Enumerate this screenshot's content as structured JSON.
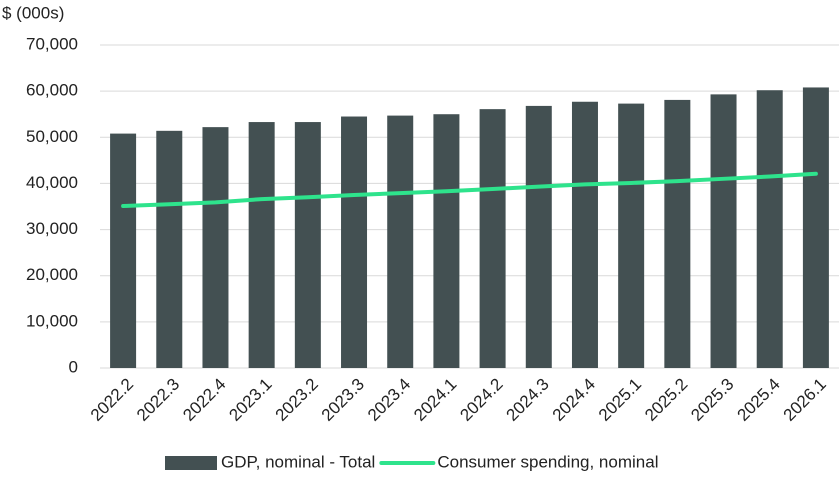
{
  "chart_data": {
    "type": "combo",
    "y_axis_label": "$ (000s)",
    "categories": [
      "2022.2",
      "2022.3",
      "2022.4",
      "2023.1",
      "2023.2",
      "2023.3",
      "2023.4",
      "2024.1",
      "2024.2",
      "2024.3",
      "2024.4",
      "2025.1",
      "2025.2",
      "2025.3",
      "2025.4",
      "2026.1"
    ],
    "series": [
      {
        "name": "GDP, nominal - Total",
        "type": "bar",
        "color": "#435052",
        "values": [
          50800,
          51400,
          52200,
          53300,
          53300,
          54500,
          54700,
          55000,
          56100,
          56800,
          57700,
          57300,
          58100,
          59300,
          60200,
          60800
        ]
      },
      {
        "name": "Consumer spending, nominal",
        "type": "line",
        "color": "#2ee38c",
        "values": [
          35100,
          35500,
          35900,
          36600,
          37000,
          37500,
          37900,
          38300,
          38800,
          39300,
          39800,
          40100,
          40500,
          41000,
          41500,
          42100
        ]
      }
    ],
    "ylim": [
      0,
      70000
    ],
    "yticks": [
      0,
      {
        "value": 10000,
        "label": "10,000"
      },
      {
        "value": 20000,
        "label": "20,000"
      },
      {
        "value": 30000,
        "label": "30,000"
      },
      {
        "value": 40000,
        "label": "40,000"
      },
      {
        "value": 50000,
        "label": "50,000"
      },
      {
        "value": 60000,
        "label": "60,000"
      },
      {
        "value": 70000,
        "label": "70,000"
      }
    ],
    "grid": true,
    "legend": "bottom"
  }
}
